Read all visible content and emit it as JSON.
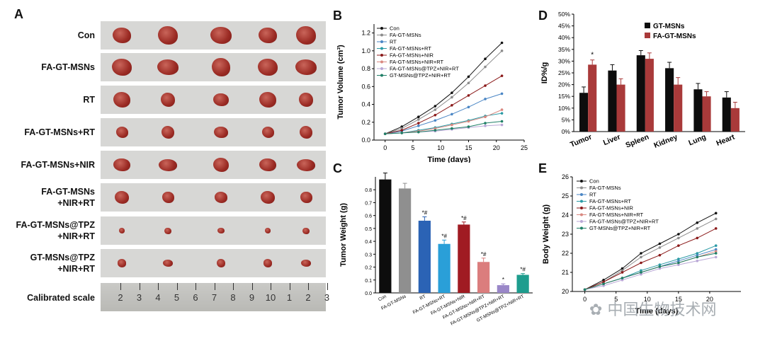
{
  "panels": {
    "A": "A",
    "B": "B",
    "C": "C",
    "D": "D",
    "E": "E"
  },
  "photo_rows": [
    "Con",
    "FA-GT-MSNs",
    "RT",
    "FA-GT-MSNs+RT",
    "FA-GT-MSNs+NIR",
    "FA-GT-MSNs\n+NIR+RT",
    "FA-GT-MSNs@TPZ\n+NIR+RT",
    "GT-MSNs@TPZ\n+NIR+RT"
  ],
  "ruler": {
    "label": "Calibrated scale",
    "ticks": [
      "2",
      "3",
      "4",
      "5",
      "6",
      "7",
      "8",
      "9",
      "10",
      "1",
      "2",
      "3"
    ]
  },
  "watermark": "中国生物技术网",
  "chart_data": [
    {
      "id": "B",
      "type": "line",
      "xlabel": "Time (days)",
      "ylabel": "Tumor Volume (cm³)",
      "xlim": [
        -2,
        25
      ],
      "ylim": [
        0,
        1.3
      ],
      "xticks": [
        "0",
        "5",
        "10",
        "15",
        "20",
        "25"
      ],
      "yticks": [
        "0.0",
        "0.2",
        "0.4",
        "0.6",
        "0.8",
        "1.0",
        "1.2"
      ],
      "x": [
        0,
        3,
        6,
        9,
        12,
        15,
        18,
        21
      ],
      "series": [
        {
          "name": "Con",
          "color": "#111111",
          "values": [
            0.07,
            0.15,
            0.26,
            0.38,
            0.53,
            0.71,
            0.91,
            1.09
          ]
        },
        {
          "name": "FA-GT-MSNs",
          "color": "#8c8c8c",
          "values": [
            0.07,
            0.13,
            0.23,
            0.34,
            0.48,
            0.64,
            0.82,
            1.0
          ]
        },
        {
          "name": "RT",
          "color": "#4a86c5",
          "values": [
            0.07,
            0.1,
            0.16,
            0.22,
            0.29,
            0.37,
            0.46,
            0.52
          ]
        },
        {
          "name": "FA-GT-MSNs+RT",
          "color": "#2a9aa5",
          "values": [
            0.07,
            0.08,
            0.11,
            0.14,
            0.18,
            0.22,
            0.27,
            0.3
          ]
        },
        {
          "name": "FA-GT-MSNs+NIR",
          "color": "#8b1a1a",
          "values": [
            0.07,
            0.11,
            0.19,
            0.28,
            0.39,
            0.5,
            0.61,
            0.72
          ]
        },
        {
          "name": "FA-GT-MSNs+NIR+RT",
          "color": "#d98880",
          "values": [
            0.07,
            0.08,
            0.1,
            0.13,
            0.17,
            0.21,
            0.26,
            0.34
          ]
        },
        {
          "name": "FA-GT-MSNs@TPZ+NIR+RT",
          "color": "#b9a7d6",
          "values": [
            0.07,
            0.08,
            0.09,
            0.1,
            0.12,
            0.14,
            0.16,
            0.17
          ]
        },
        {
          "name": "GT-MSNs@TPZ+NIR+RT",
          "color": "#1f7f66",
          "values": [
            0.07,
            0.08,
            0.09,
            0.11,
            0.13,
            0.15,
            0.19,
            0.21
          ]
        }
      ]
    },
    {
      "id": "C",
      "type": "bar",
      "xlabel": "",
      "ylabel": "Tumor Weight (g)",
      "ylim": [
        0,
        0.9
      ],
      "yticks": [
        "0.0",
        "0.1",
        "0.2",
        "0.3",
        "0.4",
        "0.5",
        "0.6",
        "0.7",
        "0.8"
      ],
      "categories": [
        "Con",
        "FA-GT-MSNs",
        "RT",
        "FA-GT-MSNs+RT",
        "FA-GT-MSNs+NIR",
        "FA-GT-MSNs+NIR+RT",
        "FA-GT-MSNs@TPZ+NIR+RT",
        "GT-MSNs@TPZ+NIR+RT"
      ],
      "values": [
        0.88,
        0.81,
        0.56,
        0.38,
        0.53,
        0.24,
        0.06,
        0.14
      ],
      "errors": [
        0.05,
        0.04,
        0.03,
        0.03,
        0.02,
        0.03,
        0.01,
        0.01
      ],
      "colors": [
        "#0d0d0d",
        "#8f8f8f",
        "#2b63b5",
        "#2a9fd8",
        "#a01b22",
        "#db7d7d",
        "#9a87c8",
        "#1e9d8e"
      ],
      "annotations": [
        "",
        "",
        "*#",
        "*#",
        "*#",
        "*#",
        "*",
        "*#"
      ]
    },
    {
      "id": "D",
      "type": "bar",
      "xlabel": "",
      "ylabel": "ID%/g",
      "ylim": [
        0,
        50
      ],
      "yticks": [
        "0%",
        "5%",
        "10%",
        "15%",
        "20%",
        "25%",
        "30%",
        "35%",
        "40%",
        "45%",
        "50%"
      ],
      "categories": [
        "Tumor",
        "Liver",
        "Spleen",
        "Kidney",
        "Lung",
        "Heart"
      ],
      "series": [
        {
          "name": "GT-MSNs",
          "color": "#0d0d0d",
          "values": [
            16.5,
            26,
            32.5,
            27,
            18,
            14.5
          ],
          "errors": [
            2.5,
            2.5,
            2,
            2.5,
            2.5,
            2.5
          ]
        },
        {
          "name": "FA-GT-MSNs",
          "color": "#a93a3a",
          "values": [
            28.5,
            20,
            31,
            20,
            15,
            10
          ],
          "errors": [
            2,
            2.5,
            2.5,
            3,
            2,
            2.5
          ]
        }
      ],
      "annotations": [
        "*",
        "",
        "",
        "",
        "",
        ""
      ]
    },
    {
      "id": "E",
      "type": "line",
      "xlabel": "Time (days)",
      "ylabel": "Body Weight (g)",
      "xlim": [
        -2,
        25
      ],
      "ylim": [
        20,
        26
      ],
      "xticks": [
        "0",
        "5",
        "10",
        "15",
        "20"
      ],
      "yticks": [
        "20",
        "21",
        "22",
        "23",
        "24",
        "25",
        "26"
      ],
      "x": [
        0,
        3,
        6,
        9,
        12,
        15,
        18,
        21
      ],
      "series": [
        {
          "name": "Con",
          "color": "#111111",
          "values": [
            20.1,
            20.6,
            21.2,
            22.0,
            22.5,
            23.0,
            23.6,
            24.1
          ]
        },
        {
          "name": "FA-GT-MSNs",
          "color": "#8c8c8c",
          "values": [
            20.1,
            20.5,
            21.1,
            21.8,
            22.3,
            22.8,
            23.3,
            23.8
          ]
        },
        {
          "name": "RT",
          "color": "#4a86c5",
          "values": [
            20.1,
            20.4,
            20.7,
            21.0,
            21.3,
            21.6,
            21.9,
            22.2
          ]
        },
        {
          "name": "FA-GT-MSNs+RT",
          "color": "#2a9aa5",
          "values": [
            20.1,
            20.4,
            20.7,
            21.1,
            21.4,
            21.7,
            22.0,
            22.4
          ]
        },
        {
          "name": "FA-GT-MSNs+NIR",
          "color": "#8b1a1a",
          "values": [
            20.1,
            20.5,
            21.0,
            21.5,
            21.9,
            22.4,
            22.8,
            23.3
          ]
        },
        {
          "name": "FA-GT-MSNs+NIR+RT",
          "color": "#d98880",
          "values": [
            20.1,
            20.4,
            20.7,
            21.0,
            21.3,
            21.5,
            21.8,
            22.1
          ]
        },
        {
          "name": "FA-GT-MSNs@TPZ+NIR+RT",
          "color": "#b9a7d6",
          "values": [
            20.1,
            20.3,
            20.6,
            20.9,
            21.2,
            21.4,
            21.6,
            21.8
          ]
        },
        {
          "name": "GT-MSNs@TPZ+NIR+RT",
          "color": "#1f7f66",
          "values": [
            20.1,
            20.4,
            20.7,
            21.0,
            21.3,
            21.5,
            21.8,
            22.0
          ]
        }
      ]
    }
  ]
}
